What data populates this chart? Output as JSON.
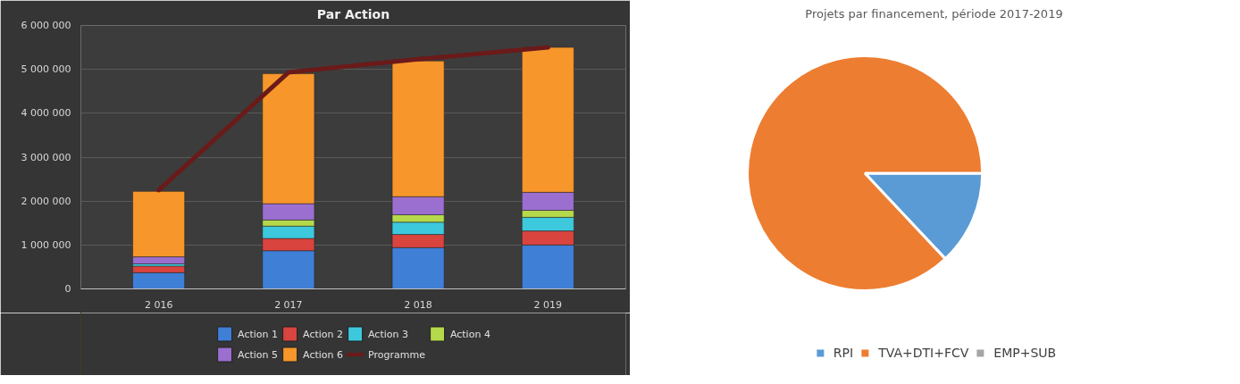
{
  "chart_data": [
    {
      "type": "bar",
      "title": "Par Action",
      "stacked": true,
      "categories": [
        "2 016",
        "2 017",
        "2 018",
        "2 019"
      ],
      "series": [
        {
          "name": "Action 1",
          "color": "#3f7fd6",
          "values": [
            370000,
            870000,
            940000,
            1000000
          ]
        },
        {
          "name": "Action 2",
          "color": "#d9443e",
          "values": [
            150000,
            280000,
            300000,
            320000
          ]
        },
        {
          "name": "Action 3",
          "color": "#3dc8dd",
          "values": [
            50000,
            280000,
            280000,
            310000
          ]
        },
        {
          "name": "Action 4",
          "color": "#b5d94a",
          "values": [
            null,
            140000,
            170000,
            160000
          ]
        },
        {
          "name": "Action 5",
          "color": "#9b6fcf",
          "values": [
            160000,
            370000,
            410000,
            410000
          ]
        },
        {
          "name": "Action 6",
          "color": "#f7962a",
          "values": [
            1490000,
            2960000,
            3090000,
            3300000
          ]
        },
        {
          "name": "Programme",
          "type": "line",
          "color": "#6b1a1a",
          "values": [
            2250000,
            4930000,
            5230000,
            5500000
          ]
        }
      ],
      "ylim": [
        0,
        6000000
      ],
      "yticks": [
        {
          "value": 0,
          "label": "0"
        },
        {
          "value": 1000000,
          "label": "1 000 000"
        },
        {
          "value": 2000000,
          "label": "2 000 000"
        },
        {
          "value": 3000000,
          "label": "3 000 000"
        },
        {
          "value": 4000000,
          "label": "4 000 000"
        },
        {
          "value": 5000000,
          "label": "5 000 000"
        },
        {
          "value": 6000000,
          "label": "6 000 000"
        }
      ],
      "grid": "y",
      "legend": "bottom",
      "line_style": "solid"
    },
    {
      "type": "pie",
      "title": "Projets par financement, période 2017-2019",
      "categories": [
        "RPI",
        "TVA+DTI+FCV",
        "EMP+SUB"
      ],
      "values": [
        13,
        87,
        0
      ],
      "colors": [
        "#5b9bd5",
        "#ed7d31",
        "#a5a5a5"
      ],
      "legend": "bottom"
    }
  ]
}
